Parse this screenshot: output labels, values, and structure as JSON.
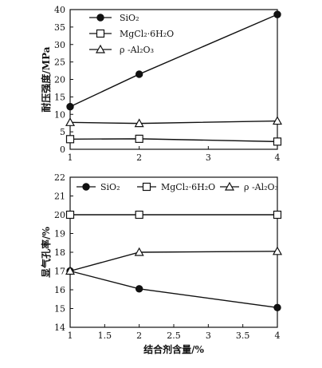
{
  "chart_data": [
    {
      "type": "line",
      "ylabel": "耐压强度/MPa",
      "xlabel": "",
      "x": [
        1,
        2,
        4
      ],
      "xticks": [
        "1",
        "2",
        "3",
        "4"
      ],
      "xlim": [
        1,
        4
      ],
      "ylim": [
        0,
        40
      ],
      "yticks": [
        "0",
        "5",
        "10",
        "15",
        "20",
        "25",
        "30",
        "35",
        "40"
      ],
      "legend_position": "top-left",
      "series": [
        {
          "name": "SiO₂",
          "marker": "filled-circle",
          "values": [
            12.2,
            21.5,
            38.6
          ]
        },
        {
          "name": "MgCl₂·6H₂O",
          "marker": "open-square",
          "values": [
            2.9,
            3.0,
            2.2
          ]
        },
        {
          "name": "ρ -Al₂O₃",
          "marker": "open-triangle",
          "values": [
            7.7,
            7.4,
            8.1
          ]
        }
      ]
    },
    {
      "type": "line",
      "ylabel": "显气孔率/%",
      "xlabel": "结合剂含量/%",
      "x": [
        1,
        2,
        4
      ],
      "xticks": [
        "1",
        "1.5",
        "2",
        "2.5",
        "3",
        "3.5",
        "4"
      ],
      "xlim": [
        1,
        4
      ],
      "ylim": [
        14,
        22
      ],
      "yticks": [
        "14",
        "15",
        "16",
        "17",
        "18",
        "19",
        "20",
        "21",
        "22"
      ],
      "legend_position": "top",
      "series": [
        {
          "name": "SiO₂",
          "marker": "filled-circle",
          "values": [
            17.0,
            16.05,
            15.05
          ]
        },
        {
          "name": "MgCl₂·6H₂O",
          "marker": "open-square",
          "values": [
            20.0,
            20.0,
            20.0
          ]
        },
        {
          "name": "ρ -Al₂O₃",
          "marker": "open-triangle",
          "values": [
            17.0,
            18.0,
            18.05
          ]
        }
      ]
    }
  ]
}
